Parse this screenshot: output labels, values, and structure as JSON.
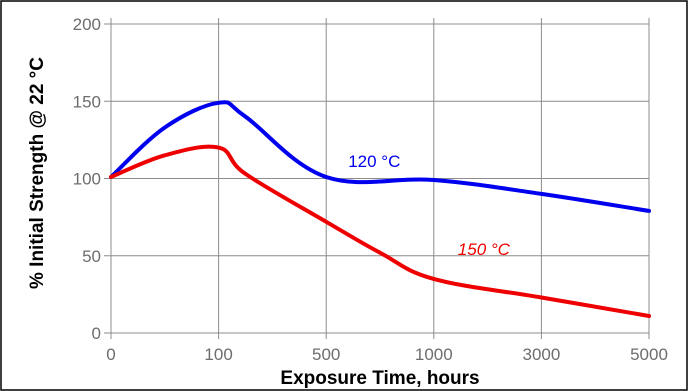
{
  "chart_data": {
    "type": "line",
    "title": "",
    "xlabel": "Exposure Time, hours",
    "ylabel": "% Initial Strength @ 22 °C",
    "x_tick_labels": [
      "0",
      "100",
      "500",
      "1000",
      "3000",
      "5000"
    ],
    "y_ticks": [
      0,
      50,
      100,
      150,
      200
    ],
    "ylim": [
      0,
      200
    ],
    "grid": true,
    "legend": "none",
    "series": [
      {
        "name": "120 °C",
        "color": "#0000ee",
        "label_style": "normal",
        "points": [
          [
            0,
            101
          ],
          [
            50,
            133
          ],
          [
            100,
            149
          ],
          [
            200,
            140
          ],
          [
            500,
            101
          ],
          [
            1000,
            99
          ],
          [
            3000,
            90
          ],
          [
            5000,
            79
          ]
        ]
      },
      {
        "name": "150 °C",
        "color": "#ee0000",
        "label_style": "italic",
        "points": [
          [
            0,
            101
          ],
          [
            50,
            115
          ],
          [
            100,
            120
          ],
          [
            200,
            103
          ],
          [
            500,
            72
          ],
          [
            750,
            52
          ],
          [
            1000,
            35
          ],
          [
            3000,
            23
          ],
          [
            5000,
            11
          ]
        ]
      }
    ]
  }
}
